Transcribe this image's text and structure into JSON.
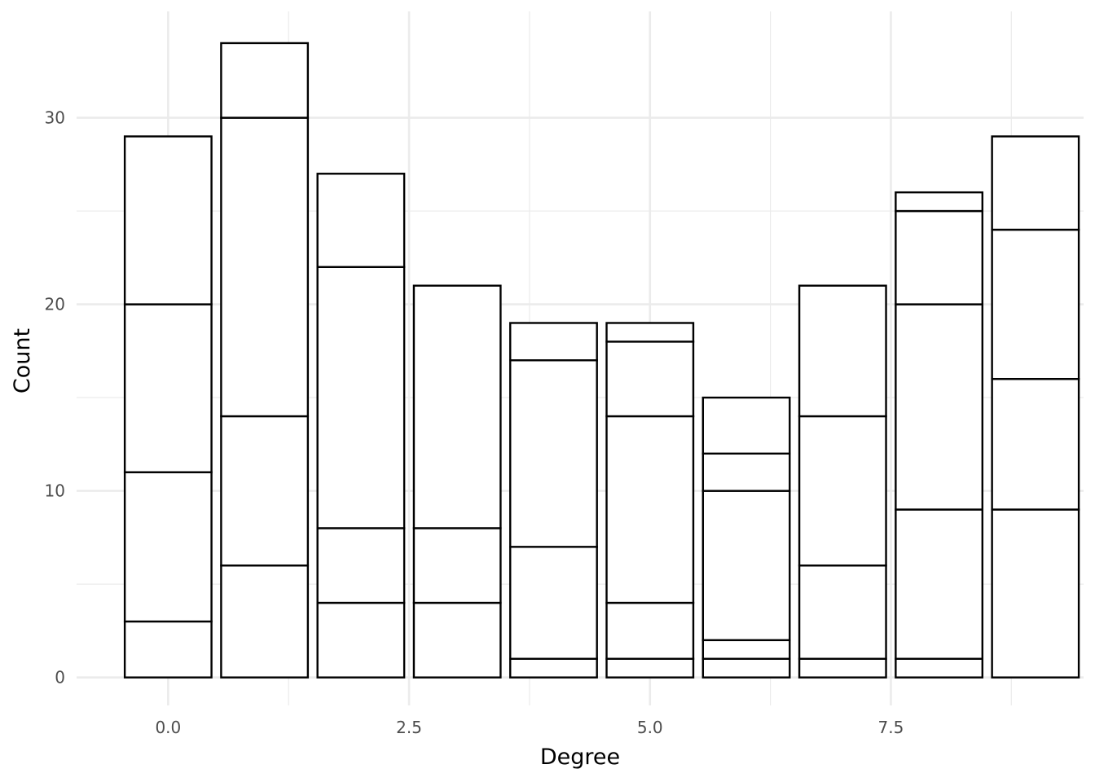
{
  "chart_data": {
    "type": "bar",
    "stacked": true,
    "xlabel": "Degree",
    "ylabel": "Count",
    "x": [
      0,
      1,
      2,
      3,
      4,
      5,
      6,
      7,
      8,
      9
    ],
    "xlim": [
      -0.95,
      9.5
    ],
    "ylim": [
      -1.5,
      35.7
    ],
    "x_ticks": [
      0.0,
      2.5,
      5.0,
      7.5
    ],
    "x_tick_labels": [
      "0.0",
      "2.5",
      "5.0",
      "7.5"
    ],
    "y_ticks": [
      0,
      10,
      20,
      30
    ],
    "y_tick_labels": [
      "0",
      "10",
      "20",
      "30"
    ],
    "grid": true,
    "bar_fill": "#ffffff",
    "bar_outline": "#000000",
    "segment_boundaries": [
      [
        0,
        3,
        11,
        20,
        29
      ],
      [
        0,
        6,
        14,
        30,
        34
      ],
      [
        0,
        4,
        8,
        22,
        27
      ],
      [
        0,
        4,
        8,
        21
      ],
      [
        0,
        1,
        7,
        17,
        19
      ],
      [
        0,
        1,
        4,
        14,
        18,
        19
      ],
      [
        0,
        1,
        2,
        10,
        12,
        15
      ],
      [
        0,
        1,
        6,
        14,
        21
      ],
      [
        0,
        1,
        9,
        20,
        25,
        26
      ],
      [
        0,
        9,
        16,
        24,
        29
      ]
    ],
    "totals": [
      29,
      34,
      27,
      21,
      19,
      19,
      15,
      21,
      26,
      29
    ]
  }
}
